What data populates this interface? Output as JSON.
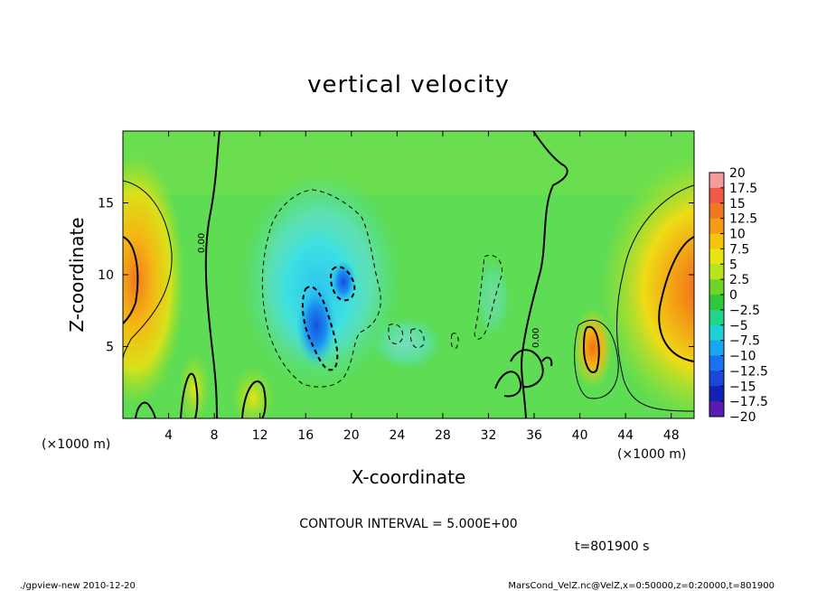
{
  "chart_data": {
    "type": "heatmap",
    "title": "vertical velocity",
    "xlabel": "X-coordinate",
    "ylabel": "Z-coordinate",
    "x_unit_left": "(×1000 m)",
    "x_unit_right": "(×1000 m)",
    "xlim": [
      0,
      50
    ],
    "ylim": [
      0,
      20
    ],
    "x_ticks": [
      4,
      8,
      12,
      16,
      20,
      24,
      28,
      32,
      36,
      40,
      44,
      48
    ],
    "y_ticks": [
      5,
      10,
      15
    ],
    "colorbar": {
      "labels": [
        "20",
        "17.5",
        "15",
        "12.5",
        "10",
        "7.5",
        "5",
        "2.5",
        "0",
        "−2.5",
        "−5",
        "−7.5",
        "−10",
        "−12.5",
        "−15",
        "−17.5",
        "−20"
      ],
      "colors": [
        "#f49b9b",
        "#ef5a46",
        "#f0781e",
        "#f59a14",
        "#f6c40a",
        "#e8e414",
        "#b8e41e",
        "#6ed428",
        "#2ec83a",
        "#20d68a",
        "#1ed0d4",
        "#18a6f0",
        "#1a72f0",
        "#1a46dc",
        "#1222b4",
        "#5a1ab4"
      ]
    },
    "contour_labels": [
      "0.00",
      "0.00"
    ],
    "contour_interval_text": "CONTOUR INTERVAL = 5.000E+00",
    "time_text": "t=801900 s"
  },
  "footer": {
    "left": "./gpview-new   2010-12-20",
    "right": "MarsCond_VelZ.nc@VelZ,x=0:50000,z=0:20000,t=801900"
  }
}
